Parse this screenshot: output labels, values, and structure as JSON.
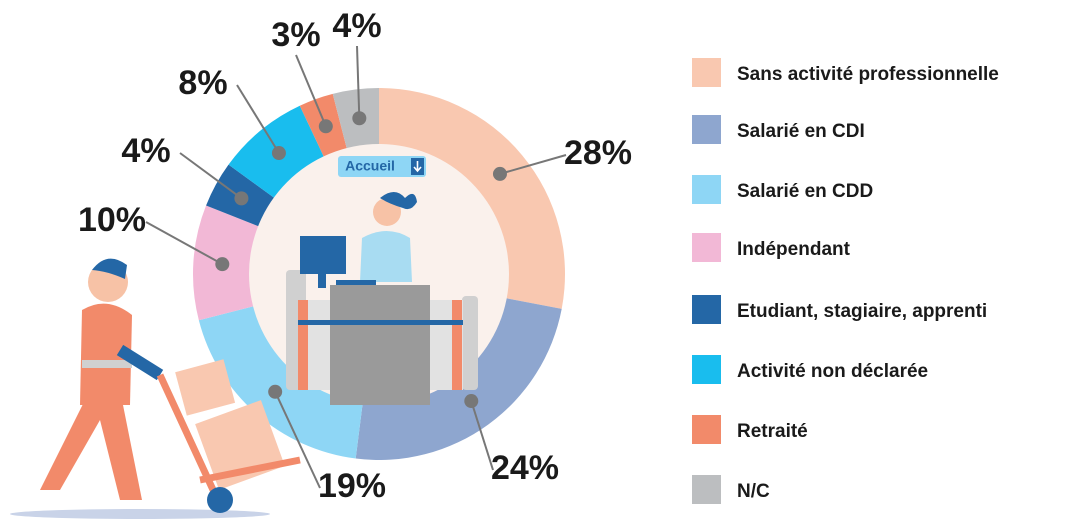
{
  "chart_data": {
    "type": "donut",
    "center_badge": "Accueil",
    "categories": [
      "Sans activité professionnelle",
      "Salarié en CDI",
      "Salarié en CDD",
      "Indépendant",
      "Etudiant, stagiaire, apprenti",
      "Activité non déclarée",
      "Retraité",
      "N/C"
    ],
    "values": [
      28,
      24,
      19,
      10,
      4,
      8,
      3,
      4
    ],
    "value_labels": [
      "28%",
      "24%",
      "19%",
      "10%",
      "4%",
      "8%",
      "3%",
      "4%"
    ],
    "colors": [
      "#f9c8b0",
      "#8ea6cf",
      "#8ed6f5",
      "#f2b8d6",
      "#2467a6",
      "#19bdee",
      "#f28a6a",
      "#bcbec0"
    ]
  }
}
